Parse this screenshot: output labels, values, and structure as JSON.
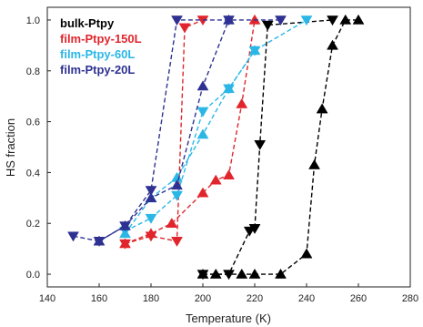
{
  "chart_data": {
    "type": "line",
    "xlabel": "Temperature (K)",
    "ylabel": "HS fraction",
    "xlim": [
      140,
      280
    ],
    "ylim": [
      -0.05,
      1.05
    ],
    "xticks": [
      140,
      160,
      180,
      200,
      220,
      240,
      260,
      280
    ],
    "yticks": [
      0.0,
      0.2,
      0.4,
      0.6,
      0.8,
      1.0
    ],
    "grid": false,
    "legend": "top-left",
    "series": [
      {
        "name": "bulk-Ptpy",
        "color": "#000000",
        "line_style": "dashed",
        "branches": [
          {
            "marker": "triangle-up",
            "x": [
              200,
              205,
              215,
              220,
              230,
              240,
              243,
              246,
              250,
              255,
              260
            ],
            "y": [
              0.0,
              0.0,
              0.0,
              0.0,
              0.0,
              0.08,
              0.43,
              0.65,
              0.9,
              1.0,
              1.0
            ]
          },
          {
            "marker": "triangle-down",
            "x": [
              200,
              210,
              218,
              220,
              222,
              225,
              250
            ],
            "y": [
              0.0,
              0.0,
              0.17,
              0.18,
              0.51,
              0.98,
              1.0
            ]
          }
        ]
      },
      {
        "name": "film-Ptpy-150L",
        "color": "#e0262c",
        "line_style": "dashed",
        "branches": [
          {
            "marker": "triangle-up",
            "x": [
              170,
              180,
              188,
              200,
              205,
              210,
              215,
              220
            ],
            "y": [
              0.12,
              0.16,
              0.2,
              0.32,
              0.37,
              0.39,
              0.67,
              1.0
            ]
          },
          {
            "marker": "triangle-down",
            "x": [
              170,
              180,
              190,
              193,
              200
            ],
            "y": [
              0.12,
              0.15,
              0.13,
              0.97,
              1.0
            ]
          }
        ]
      },
      {
        "name": "film-Ptpy-60L",
        "color": "#2ab7e6",
        "line_style": "dashed",
        "branches": [
          {
            "marker": "triangle-up",
            "x": [
              170,
              180,
              190,
              200,
              210,
              220
            ],
            "y": [
              0.16,
              0.3,
              0.38,
              0.55,
              0.73,
              0.88
            ]
          },
          {
            "marker": "triangle-down",
            "x": [
              170,
              180,
              190,
              200,
              210,
              220,
              240
            ],
            "y": [
              0.17,
              0.22,
              0.31,
              0.64,
              0.73,
              0.88,
              1.0
            ]
          }
        ]
      },
      {
        "name": "film-Ptpy-20L",
        "color": "#2e3192",
        "line_style": "dashed",
        "branches": [
          {
            "marker": "triangle-up",
            "x": [
              160,
              170,
              180,
              190,
              200,
              210
            ],
            "y": [
              0.13,
              0.19,
              0.3,
              0.35,
              0.74,
              1.0
            ]
          },
          {
            "marker": "triangle-down",
            "x": [
              150,
              160,
              170,
              180,
              190,
              210,
              230
            ],
            "y": [
              0.15,
              0.13,
              0.19,
              0.33,
              1.0,
              1.0,
              1.0
            ]
          }
        ]
      }
    ]
  }
}
